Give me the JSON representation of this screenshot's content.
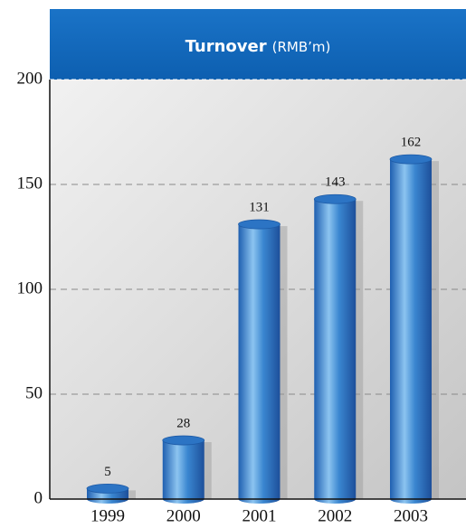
{
  "chart_data": {
    "type": "bar",
    "title": "Turnover",
    "unit": "(RMB’m)",
    "categories": [
      "1999",
      "2000",
      "2001",
      "2002",
      "2003"
    ],
    "values": [
      5,
      28,
      131,
      143,
      162
    ],
    "color": "#3a86d0",
    "ylim": [
      0,
      200
    ],
    "yticks": [
      0,
      50,
      100,
      150,
      200
    ],
    "grid": true
  }
}
